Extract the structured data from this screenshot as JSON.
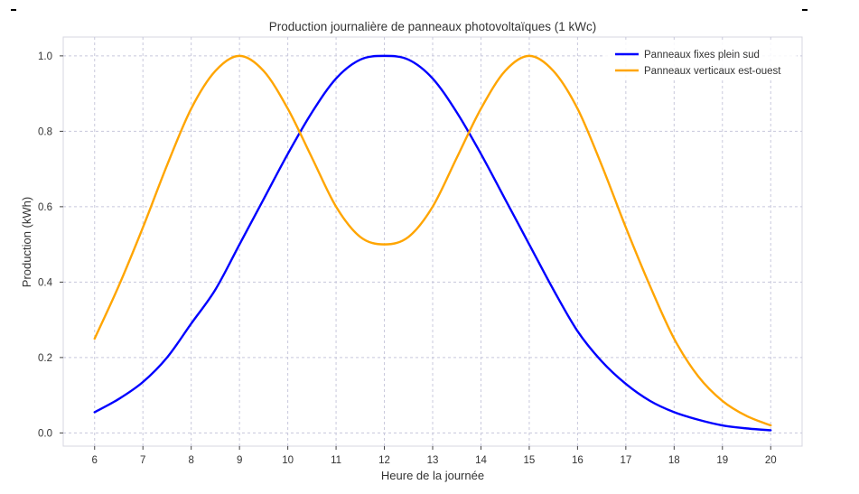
{
  "chart_data": {
    "type": "line",
    "title": "Production journalière de panneaux photovoltaïques (1 kWc)",
    "xlabel": "Heure de la journée",
    "ylabel": "Production (kWh)",
    "xlim": [
      5.35,
      20.65
    ],
    "ylim": [
      -0.035,
      1.05
    ],
    "xticks": [
      6,
      7,
      8,
      9,
      10,
      11,
      12,
      13,
      14,
      15,
      16,
      17,
      18,
      19,
      20
    ],
    "yticks": [
      0.0,
      0.2,
      0.4,
      0.6,
      0.8,
      1.0
    ],
    "ytick_labels": [
      "0.0",
      "0.2",
      "0.4",
      "0.6",
      "0.8",
      "1.0"
    ],
    "grid": true,
    "legend_position": "top-right",
    "x": [
      6,
      6.5,
      7,
      7.5,
      8,
      8.5,
      9,
      9.5,
      10,
      10.5,
      11,
      11.5,
      12,
      12.5,
      13,
      13.5,
      14,
      14.5,
      15,
      15.5,
      16,
      16.5,
      17,
      17.5,
      18,
      18.5,
      19,
      19.5,
      20
    ],
    "series": [
      {
        "name": "Panneaux fixes plein sud",
        "color": "#0000ff",
        "values": [
          0.055,
          0.09,
          0.135,
          0.2,
          0.29,
          0.38,
          0.5,
          0.62,
          0.74,
          0.85,
          0.94,
          0.99,
          1.0,
          0.99,
          0.94,
          0.85,
          0.74,
          0.62,
          0.5,
          0.38,
          0.27,
          0.19,
          0.13,
          0.085,
          0.055,
          0.035,
          0.02,
          0.012,
          0.007
        ]
      },
      {
        "name": "Panneaux verticaux est-ouest",
        "color": "#ffa500",
        "values": [
          0.25,
          0.39,
          0.545,
          0.71,
          0.86,
          0.96,
          1.0,
          0.96,
          0.86,
          0.73,
          0.6,
          0.52,
          0.5,
          0.52,
          0.6,
          0.73,
          0.86,
          0.96,
          1.0,
          0.96,
          0.86,
          0.71,
          0.545,
          0.39,
          0.25,
          0.15,
          0.085,
          0.045,
          0.02
        ]
      }
    ]
  }
}
